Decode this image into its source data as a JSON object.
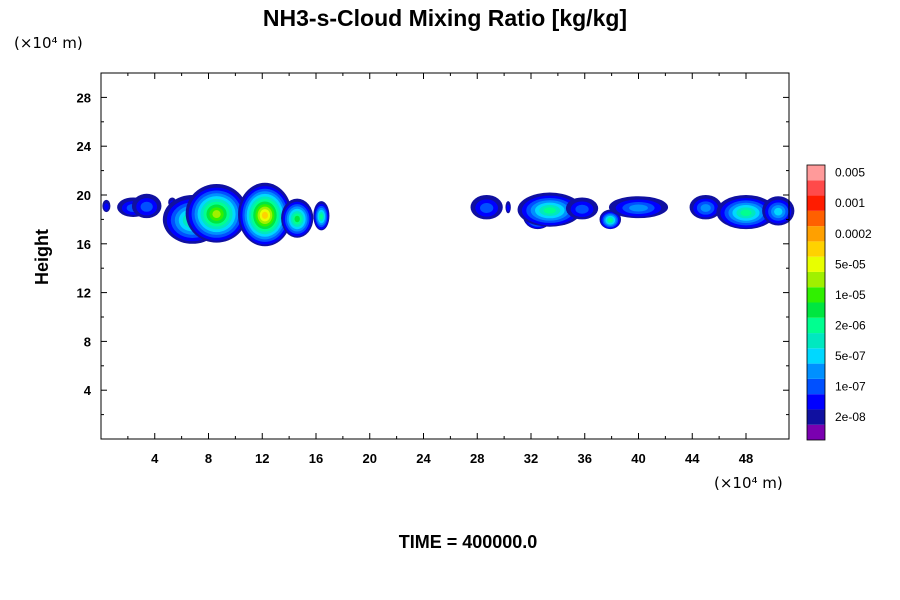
{
  "chart_data": {
    "type": "heatmap",
    "title": "NH3-s-Cloud Mixing Ratio [kg/kg]",
    "xlabel": "",
    "ylabel": "Height",
    "x_unit": "(×10⁴ m)",
    "y_unit": "(×10⁴ m)",
    "xlim": [
      0,
      51.2
    ],
    "ylim": [
      0,
      30
    ],
    "xticks": [
      4,
      8,
      12,
      16,
      20,
      24,
      28,
      32,
      36,
      40,
      44,
      48
    ],
    "xtick_labels": [
      "4",
      "8",
      "12",
      "16",
      "20",
      "24",
      "28",
      "32",
      "36",
      "40",
      "44",
      "48"
    ],
    "yticks": [
      4,
      8,
      12,
      16,
      20,
      24,
      28
    ],
    "ytick_labels": [
      "4",
      "8",
      "12",
      "16",
      "20",
      "24",
      "28"
    ],
    "colorbar": {
      "colors": [
        "#7a00b0",
        "#1010a0",
        "#0000ff",
        "#0050ff",
        "#0090ff",
        "#00d8ff",
        "#00e8c0",
        "#00ff90",
        "#00e640",
        "#30f000",
        "#a0f000",
        "#e8ff00",
        "#ffd200",
        "#ffa000",
        "#ff6000",
        "#ff1c00",
        "#ff4a4a",
        "#ff9a9a"
      ],
      "labels": [
        "2e-08",
        "1e-07",
        "5e-07",
        "2e-06",
        "1e-05",
        "5e-05",
        "0.0002",
        "0.001",
        "0.005"
      ]
    },
    "cloud_blobs": [
      {
        "x": 0.4,
        "y": 19.1,
        "w": 0.3,
        "h": 0.5,
        "level": 1
      },
      {
        "x": 2.4,
        "y": 19.0,
        "w": 1.2,
        "h": 0.8,
        "level": 2
      },
      {
        "x": 3.4,
        "y": 19.1,
        "w": 1.1,
        "h": 1.0,
        "level": 2
      },
      {
        "x": 5.3,
        "y": 19.4,
        "w": 0.3,
        "h": 0.4,
        "level": 1
      },
      {
        "x": 6.8,
        "y": 18.0,
        "w": 2.2,
        "h": 2.0,
        "level": 6
      },
      {
        "x": 8.6,
        "y": 18.5,
        "w": 2.3,
        "h": 2.4,
        "level": 9
      },
      {
        "x": 12.2,
        "y": 18.4,
        "w": 2.0,
        "h": 2.6,
        "level": 11
      },
      {
        "x": 14.6,
        "y": 18.1,
        "w": 1.2,
        "h": 1.6,
        "level": 7
      },
      {
        "x": 16.4,
        "y": 18.3,
        "w": 0.6,
        "h": 1.2,
        "level": 6
      },
      {
        "x": 28.7,
        "y": 19.0,
        "w": 1.2,
        "h": 1.0,
        "level": 2
      },
      {
        "x": 30.3,
        "y": 19.0,
        "w": 0.2,
        "h": 0.5,
        "level": 1
      },
      {
        "x": 32.5,
        "y": 18.3,
        "w": 1.1,
        "h": 1.1,
        "level": 7
      },
      {
        "x": 33.4,
        "y": 18.8,
        "w": 2.4,
        "h": 1.4,
        "level": 6
      },
      {
        "x": 35.8,
        "y": 18.9,
        "w": 1.2,
        "h": 0.9,
        "level": 2
      },
      {
        "x": 37.9,
        "y": 18.0,
        "w": 0.8,
        "h": 0.8,
        "level": 6
      },
      {
        "x": 40.0,
        "y": 19.0,
        "w": 2.2,
        "h": 0.9,
        "level": 3
      },
      {
        "x": 45.0,
        "y": 19.0,
        "w": 1.2,
        "h": 1.0,
        "level": 3
      },
      {
        "x": 48.0,
        "y": 18.6,
        "w": 2.2,
        "h": 1.4,
        "level": 6
      },
      {
        "x": 50.4,
        "y": 18.7,
        "w": 1.2,
        "h": 1.2,
        "level": 4
      }
    ]
  },
  "footer": {
    "time_label": "TIME = 400000.0"
  }
}
